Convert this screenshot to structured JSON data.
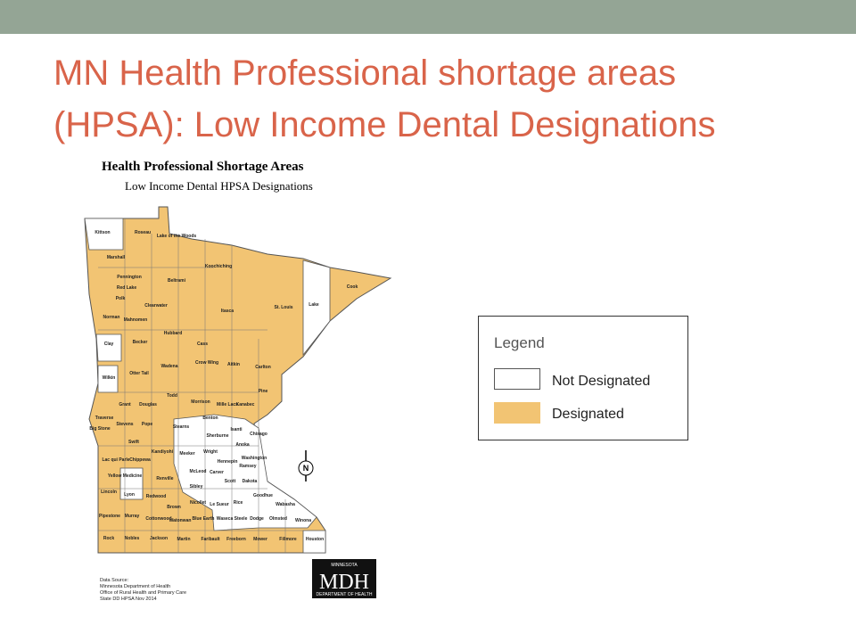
{
  "slide": {
    "title_line1": "MN Health Professional shortage areas",
    "title_line2": "(HPSA): Low Income Dental Designations"
  },
  "map": {
    "title": "Health Professional Shortage Areas",
    "subtitle": "Low Income Dental HPSA Designations",
    "counties": [
      "Kittson",
      "Roseau",
      "Lake of the Woods",
      "Marshall",
      "Pennington",
      "Red Lake",
      "Polk",
      "Norman",
      "Mahnomen",
      "Beltrami",
      "Koochiching",
      "Clearwater",
      "Itasca",
      "St. Louis",
      "Lake",
      "Cook",
      "Clay",
      "Becker",
      "Hubbard",
      "Cass",
      "Crow Wing",
      "Aitkin",
      "Carlton",
      "Wilkin",
      "Otter Tail",
      "Wadena",
      "Pine",
      "Todd",
      "Morrison",
      "Mille Lacs",
      "Kanabec",
      "Grant",
      "Douglas",
      "Traverse",
      "Stevens",
      "Pope",
      "Big Stone",
      "Stearns",
      "Benton",
      "Isanti",
      "Chisago",
      "Sherburne",
      "Anoka",
      "Swift",
      "Kandiyohi",
      "Meeker",
      "Wright",
      "Hennepin",
      "Washington",
      "Ramsey",
      "Lac qui Parle",
      "Chippewa",
      "McLeod",
      "Carver",
      "Scott",
      "Dakota",
      "Yellow Medicine",
      "Renville",
      "Sibley",
      "Lincoln",
      "Lyon",
      "Redwood",
      "Nicollet",
      "Le Sueur",
      "Rice",
      "Goodhue",
      "Wabasha",
      "Brown",
      "Pipestone",
      "Murray",
      "Cottonwood",
      "Watonwan",
      "Blue Earth",
      "Waseca",
      "Steele",
      "Dodge",
      "Olmsted",
      "Winona",
      "Rock",
      "Nobles",
      "Jackson",
      "Martin",
      "Faribault",
      "Freeborn",
      "Mower",
      "Fillmore",
      "Houston"
    ],
    "compass": "N",
    "source": [
      "Data Source:",
      "Minnesota Department of Health",
      "Office of Rural Health and Primary Care",
      "State DD HPSA  Nov 2014"
    ],
    "logo": {
      "top": "MINNESOTA",
      "main": "MDH",
      "bottom": "DEPARTMENT OF HEALTH"
    }
  },
  "legend": {
    "title": "Legend",
    "items": [
      "Not Designated",
      "Designated"
    ]
  }
}
